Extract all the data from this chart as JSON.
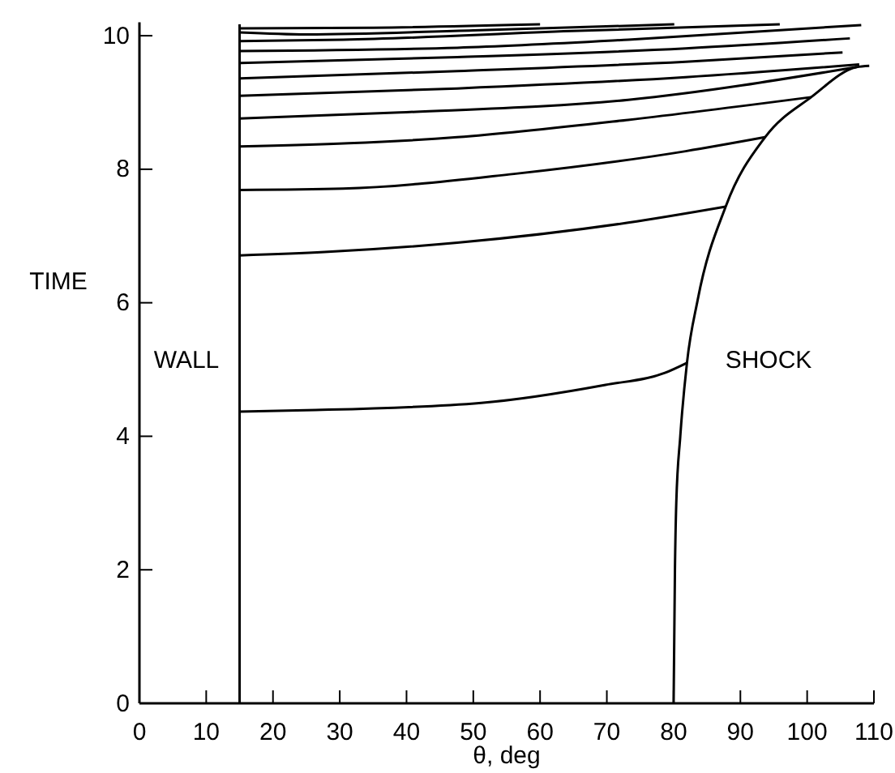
{
  "chart_data": {
    "type": "line",
    "xlabel": "θ, deg",
    "ylabel": "TIME",
    "xlim": [
      0,
      110
    ],
    "ylim": [
      0,
      10.2
    ],
    "xticks": [
      0,
      10,
      20,
      30,
      40,
      50,
      60,
      70,
      80,
      90,
      100,
      110
    ],
    "yticks": [
      0,
      2,
      4,
      6,
      8,
      10
    ],
    "grid": false,
    "marker": "none",
    "line_style": "solid",
    "series": [
      {
        "color": "#000000",
        "x": [
          15,
          15
        ],
        "values": [
          0,
          10.17
        ]
      },
      {
        "color": "#000000",
        "x": [
          80,
          80.2,
          80.4,
          81,
          82,
          83.6,
          87.8,
          93.7,
          100.6,
          107.4,
          109.3
        ],
        "values": [
          0,
          2,
          3,
          4,
          5.1,
          6.04,
          7.44,
          8.48,
          9.08,
          9.53,
          9.55
        ]
      },
      {
        "color": "#000000",
        "x": [
          15,
          25,
          51.2,
          69.8,
          78.7,
          82
        ],
        "values": [
          4.37,
          4.39,
          4.5,
          4.77,
          4.95,
          5.1
        ]
      },
      {
        "color": "#000000",
        "x": [
          15,
          27.7,
          47.6,
          73.2,
          87.8
        ],
        "values": [
          6.71,
          6.76,
          6.9,
          7.2,
          7.44
        ]
      },
      {
        "color": "#000000",
        "x": [
          15,
          30.5,
          56.1,
          81.8,
          93.7
        ],
        "values": [
          7.69,
          7.71,
          7.93,
          8.27,
          8.48
        ]
      },
      {
        "color": "#000000",
        "x": [
          15,
          47.6,
          73.2,
          100.6
        ],
        "values": [
          8.34,
          8.48,
          8.74,
          9.08
        ]
      },
      {
        "color": "#000000",
        "x": [
          15,
          39,
          73.2,
          107.4
        ],
        "values": [
          8.76,
          8.85,
          9.04,
          9.53
        ]
      },
      {
        "color": "#000000",
        "x": [
          15,
          47.6,
          81.8,
          107.8
        ],
        "values": [
          9.1,
          9.21,
          9.38,
          9.57
        ]
      },
      {
        "color": "#000000",
        "x": [
          15,
          47.6,
          81.8,
          105.3
        ],
        "values": [
          9.36,
          9.47,
          9.61,
          9.75
        ]
      },
      {
        "color": "#000000",
        "x": [
          15,
          47.6,
          81.8,
          106.4
        ],
        "values": [
          9.59,
          9.68,
          9.81,
          9.96
        ]
      },
      {
        "color": "#000000",
        "x": [
          15,
          47.6,
          73.2,
          108.1
        ],
        "values": [
          9.77,
          9.82,
          9.94,
          10.16
        ]
      },
      {
        "color": "#000000",
        "x": [
          15,
          30.5,
          64.7,
          95.9
        ],
        "values": [
          9.92,
          9.94,
          10.07,
          10.17
        ]
      },
      {
        "color": "#000000",
        "x": [
          15,
          25,
          50,
          80.1
        ],
        "values": [
          10.05,
          10.02,
          10.08,
          10.17
        ]
      },
      {
        "color": "#000000",
        "x": [
          15,
          35,
          60
        ],
        "values": [
          10.11,
          10.12,
          10.17
        ]
      }
    ],
    "annotations": [
      "WALL",
      "SHOCK"
    ]
  }
}
